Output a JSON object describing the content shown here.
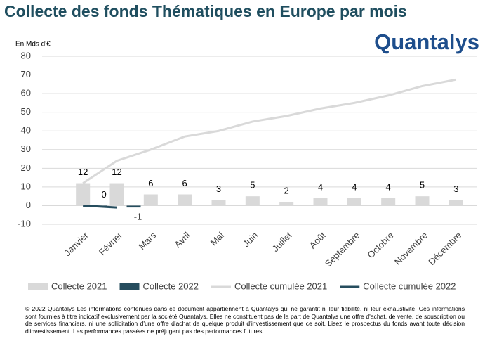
{
  "chart_data": {
    "type": "bar",
    "title": "Collecte des fonds Thématiques en Europe par mois",
    "logo": "Quantalys",
    "y_label": "En Mds d'€",
    "categories": [
      "Janvier",
      "Février",
      "Mars",
      "Avril",
      "Mai",
      "Juin",
      "Juillet",
      "Août",
      "Septembre",
      "Octobre",
      "Novembre",
      "Décembre"
    ],
    "series": [
      {
        "name": "Collecte 2021",
        "type": "bar",
        "color": "#d9d9d9",
        "values": [
          12,
          12,
          6,
          6,
          3,
          5,
          2,
          4,
          4,
          4,
          5,
          3
        ]
      },
      {
        "name": "Collecte 2022",
        "type": "bar",
        "color": "#264d5e",
        "values": [
          0,
          -1,
          null,
          null,
          null,
          null,
          null,
          null,
          null,
          null,
          null,
          null
        ]
      },
      {
        "name": "Collecte cumulée 2021",
        "type": "line",
        "color": "#d9d9d9",
        "values": [
          12,
          24,
          30,
          37,
          40,
          45,
          48,
          52,
          55,
          59,
          64,
          67.5
        ]
      },
      {
        "name": "Collecte cumulée 2022",
        "type": "line",
        "color": "#264d5e",
        "values": [
          0,
          -1,
          null,
          null,
          null,
          null,
          null,
          null,
          null,
          null,
          null,
          null
        ]
      }
    ],
    "ylim": [
      -10,
      80
    ],
    "yticks": [
      -10,
      0,
      10,
      20,
      30,
      40,
      50,
      60,
      70,
      80
    ],
    "grid": true,
    "legend": "bottom",
    "footer": "© 2022 Quantalys Les informations contenues dans ce document appartiennent à Quantalys qui ne garantit ni leur fiabilité, ni leur exhaustivité. Ces informations sont fournies à titre indicatif exclusivement par la société Quantalys. Elles ne constituent pas de la part de Quantalys une offre d'achat, de vente, de souscription ou de services financiers, ni une sollicitation d'une offre d'achat de quelque produit d'investissement que ce soit. Lisez le prospectus du fonds avant toute décision d'investissement. Les performances passées ne préjugent pas des performances futures."
  }
}
